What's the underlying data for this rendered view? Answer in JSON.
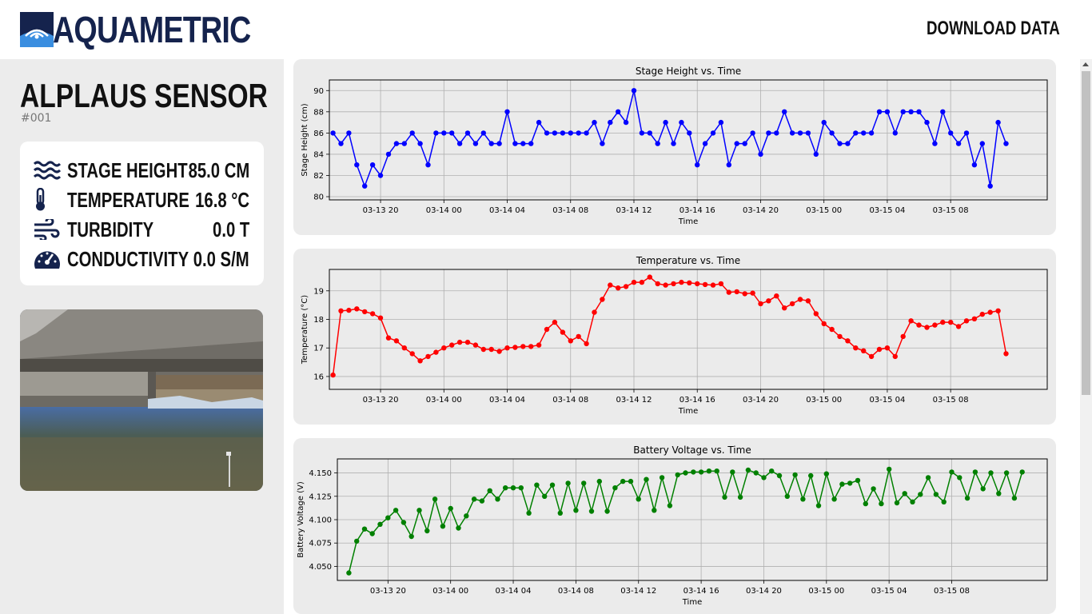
{
  "header": {
    "brand": "AQUAMETRIC",
    "download_label": "DOWNLOAD DATA"
  },
  "sensor": {
    "title": "ALPLAUS SENSOR",
    "id": "#001",
    "readings": [
      {
        "icon": "waves-icon",
        "label": "STAGE HEIGHT",
        "value": "85.0 CM"
      },
      {
        "icon": "thermometer-icon",
        "label": "TEMPERATURE",
        "value": "16.8 °C"
      },
      {
        "icon": "wind-icon",
        "label": "TURBIDITY",
        "value": "0.0 T"
      },
      {
        "icon": "gauge-icon",
        "label": "CONDUCTIVITY",
        "value": "0.0 S/M"
      }
    ]
  },
  "colors": {
    "brand": "#15234d",
    "brand_accent": "#3a8ee0",
    "panel_bg": "#ebebeb",
    "stage_series": "#0000ff",
    "temperature_series": "#ff0000",
    "battery_series": "#008000"
  },
  "chart_data": [
    {
      "type": "line",
      "title": "Stage Height vs. Time",
      "xlabel": "Time",
      "ylabel": "Stage Height (cm)",
      "x_ticks": [
        "03-13 20",
        "03-14 00",
        "03-14 04",
        "03-14 08",
        "03-14 12",
        "03-14 16",
        "03-14 20",
        "03-15 00",
        "03-15 04",
        "03-15 08"
      ],
      "x_start": "03-13 17:00",
      "x_step_minutes": 30,
      "ylim": [
        79.7,
        91.0
      ],
      "y_ticks": [
        80,
        82,
        84,
        86,
        88,
        90
      ],
      "grid": true,
      "color": "#0000ff",
      "values": [
        86,
        85,
        86,
        83,
        81,
        83,
        82,
        84,
        85,
        85,
        86,
        85,
        83,
        86,
        86,
        86,
        85,
        86,
        85,
        86,
        85,
        85,
        88,
        85,
        85,
        85,
        87,
        86,
        86,
        86,
        86,
        86,
        86,
        87,
        85,
        87,
        88,
        87,
        90,
        86,
        86,
        85,
        87,
        85,
        87,
        86,
        83,
        85,
        86,
        87,
        83,
        85,
        85,
        86,
        84,
        86,
        86,
        88,
        86,
        86,
        86,
        84,
        87,
        86,
        85,
        85,
        86,
        86,
        86,
        88,
        88,
        86,
        88,
        88,
        88,
        87,
        85,
        88,
        86,
        85,
        86,
        83,
        85,
        81,
        87,
        85
      ]
    },
    {
      "type": "line",
      "title": "Temperature vs. Time",
      "xlabel": "Time",
      "ylabel": "Temperature (°C)",
      "x_ticks": [
        "03-13 20",
        "03-14 00",
        "03-14 04",
        "03-14 08",
        "03-14 12",
        "03-14 16",
        "03-14 20",
        "03-15 00",
        "03-15 04",
        "03-15 08"
      ],
      "x_start": "03-13 17:00",
      "x_step_minutes": 30,
      "ylim": [
        15.55,
        19.75
      ],
      "y_ticks": [
        16,
        17,
        18,
        19
      ],
      "grid": true,
      "color": "#ff0000",
      "values": [
        16.05,
        18.3,
        18.32,
        18.37,
        18.27,
        18.2,
        18.05,
        17.35,
        17.25,
        17.0,
        16.8,
        16.55,
        16.7,
        16.85,
        17.0,
        17.1,
        17.2,
        17.2,
        17.1,
        16.95,
        16.95,
        16.88,
        17.0,
        17.02,
        17.05,
        17.05,
        17.1,
        17.65,
        17.9,
        17.55,
        17.25,
        17.4,
        17.15,
        18.25,
        18.7,
        19.2,
        19.1,
        19.15,
        19.3,
        19.3,
        19.48,
        19.25,
        19.2,
        19.25,
        19.3,
        19.28,
        19.25,
        19.22,
        19.2,
        19.25,
        18.95,
        18.97,
        18.9,
        18.92,
        18.55,
        18.65,
        18.82,
        18.4,
        18.55,
        18.7,
        18.65,
        18.2,
        17.85,
        17.65,
        17.4,
        17.25,
        17.0,
        16.9,
        16.7,
        16.95,
        17.0,
        16.7,
        17.4,
        17.95,
        17.8,
        17.72,
        17.8,
        17.9,
        17.9,
        17.75,
        17.95,
        18.02,
        18.18,
        18.25,
        18.3,
        16.8
      ]
    },
    {
      "type": "line",
      "title": "Battery Voltage vs. Time",
      "xlabel": "Time",
      "ylabel": "Battery Voltage (V)",
      "x_ticks": [
        "03-13 20",
        "03-14 00",
        "03-14 04",
        "03-14 08",
        "03-14 12",
        "03-14 16",
        "03-14 20",
        "03-15 00",
        "03-15 04",
        "03-15 08"
      ],
      "x_start": "03-13 17:30",
      "x_step_minutes": 30,
      "ylim": [
        4.035,
        4.165
      ],
      "y_ticks": [
        4.05,
        4.075,
        4.1,
        4.125,
        4.15
      ],
      "y_tick_labels": [
        "4.050",
        "4.075",
        "4.100",
        "4.125",
        "4.150"
      ],
      "grid": true,
      "color": "#008000",
      "values": [
        4.043,
        4.077,
        4.09,
        4.085,
        4.095,
        4.102,
        4.11,
        4.097,
        4.082,
        4.11,
        4.088,
        4.122,
        4.093,
        4.112,
        4.091,
        4.104,
        4.122,
        4.12,
        4.131,
        4.122,
        4.134,
        4.134,
        4.134,
        4.107,
        4.137,
        4.125,
        4.137,
        4.107,
        4.139,
        4.11,
        4.139,
        4.109,
        4.141,
        4.109,
        4.134,
        4.141,
        4.141,
        4.122,
        4.143,
        4.11,
        4.145,
        4.115,
        4.148,
        4.15,
        4.151,
        4.151,
        4.152,
        4.152,
        4.124,
        4.151,
        4.124,
        4.153,
        4.15,
        4.145,
        4.152,
        4.147,
        4.125,
        4.148,
        4.122,
        4.147,
        4.115,
        4.149,
        4.122,
        4.138,
        4.139,
        4.142,
        4.117,
        4.133,
        4.117,
        4.154,
        4.118,
        4.128,
        4.119,
        4.127,
        4.145,
        4.127,
        4.119,
        4.151,
        4.145,
        4.123,
        4.151,
        4.133,
        4.15,
        4.128,
        4.15,
        4.123,
        4.151
      ]
    }
  ]
}
